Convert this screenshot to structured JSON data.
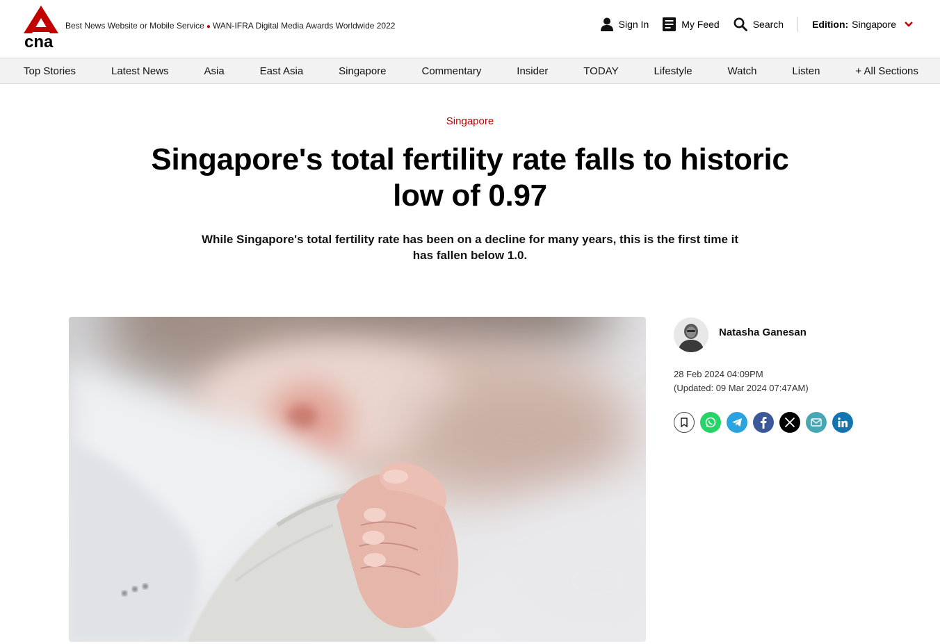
{
  "header": {
    "logo_text": "cna",
    "award_left": "Best News Website or Mobile Service",
    "award_right": "WAN-IFRA Digital Media Awards Worldwide 2022",
    "sign_in": "Sign In",
    "my_feed": "My Feed",
    "search": "Search",
    "edition_label": "Edition:",
    "edition_value": "Singapore"
  },
  "nav": {
    "items": [
      "Top Stories",
      "Latest News",
      "Asia",
      "East Asia",
      "Singapore",
      "Commentary",
      "Insider",
      "TODAY",
      "Lifestyle",
      "Watch",
      "Listen",
      "+ All Sections"
    ]
  },
  "article": {
    "category": "Singapore",
    "headline": "Singapore's total fertility rate falls to historic low of 0.97",
    "dek": "While Singapore's total fertility rate has been on a decline for many years, this is the first time it has fallen below 1.0.",
    "author": "Natasha Ganesan",
    "published": "28 Feb 2024 04:09PM",
    "updated": "(Updated: 09 Mar 2024 07:47AM)"
  },
  "share_icons": [
    "bookmark-icon",
    "whatsapp-icon",
    "telegram-icon",
    "facebook-icon",
    "x-icon",
    "email-icon",
    "linkedin-icon"
  ],
  "colors": {
    "brand_red": "#c20000",
    "whatsapp": "#25d366",
    "telegram": "#2aa3df",
    "facebook": "#3b5998",
    "x": "#000000",
    "email": "#47a7b2",
    "linkedin": "#1275b1"
  }
}
